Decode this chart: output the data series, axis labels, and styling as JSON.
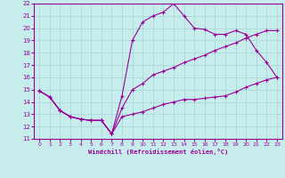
{
  "xlabel": "Windchill (Refroidissement éolien,°C)",
  "xlim": [
    -0.5,
    23.5
  ],
  "ylim": [
    11,
    22
  ],
  "yticks": [
    11,
    12,
    13,
    14,
    15,
    16,
    17,
    18,
    19,
    20,
    21,
    22
  ],
  "xticks": [
    0,
    1,
    2,
    3,
    4,
    5,
    6,
    7,
    8,
    9,
    10,
    11,
    12,
    13,
    14,
    15,
    16,
    17,
    18,
    19,
    20,
    21,
    22,
    23
  ],
  "bg_color": "#c6ecec",
  "grid_color": "#aad8d8",
  "line_color": "#990099",
  "line1_x": [
    0,
    1,
    2,
    3,
    4,
    5,
    6,
    7,
    8,
    9,
    10,
    11,
    12,
    13,
    14,
    15,
    16,
    17,
    18,
    19,
    20,
    21,
    22,
    23
  ],
  "line1_y": [
    14.9,
    14.4,
    13.3,
    12.8,
    12.6,
    12.5,
    12.5,
    11.4,
    14.5,
    19.0,
    20.5,
    21.0,
    21.3,
    22.0,
    21.0,
    20.0,
    19.9,
    19.5,
    19.5,
    19.8,
    19.5,
    18.2,
    17.2,
    16.0
  ],
  "line2_x": [
    0,
    1,
    2,
    3,
    4,
    5,
    6,
    7,
    8,
    9,
    10,
    11,
    12,
    13,
    14,
    15,
    16,
    17,
    18,
    19,
    20,
    21,
    22,
    23
  ],
  "line2_y": [
    14.9,
    14.4,
    13.3,
    12.8,
    12.6,
    12.5,
    12.5,
    11.4,
    13.5,
    15.0,
    15.5,
    16.2,
    16.5,
    16.8,
    17.2,
    17.5,
    17.8,
    18.2,
    18.5,
    18.8,
    19.2,
    19.5,
    19.8,
    19.8
  ],
  "line3_x": [
    0,
    1,
    2,
    3,
    4,
    5,
    6,
    7,
    8,
    9,
    10,
    11,
    12,
    13,
    14,
    15,
    16,
    17,
    18,
    19,
    20,
    21,
    22,
    23
  ],
  "line3_y": [
    14.9,
    14.4,
    13.3,
    12.8,
    12.6,
    12.5,
    12.5,
    11.4,
    12.8,
    13.0,
    13.2,
    13.5,
    13.8,
    14.0,
    14.2,
    14.2,
    14.3,
    14.4,
    14.5,
    14.8,
    15.2,
    15.5,
    15.8,
    16.0
  ]
}
